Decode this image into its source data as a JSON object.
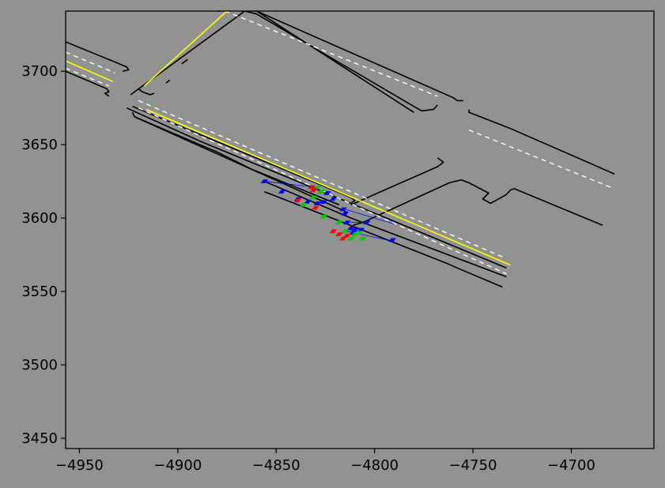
{
  "chart_data": {
    "type": "scatter",
    "title": "",
    "xlabel": "",
    "ylabel": "",
    "xlim": [
      -4957,
      -4658
    ],
    "ylim": [
      3443,
      3741
    ],
    "xticks": [
      -4950,
      -4900,
      -4850,
      -4800,
      -4750,
      -4700
    ],
    "xtick_labels": [
      "−4950",
      "−4900",
      "−4850",
      "−4800",
      "−4750",
      "−4700"
    ],
    "yticks": [
      3450,
      3500,
      3550,
      3600,
      3650,
      3700
    ],
    "ytick_labels": [
      "3450",
      "3500",
      "3550",
      "3600",
      "3650",
      "3700"
    ],
    "grid": false,
    "colors": {
      "background": "#919390",
      "road_edge": "#000000",
      "lane_divider": "#ffffff",
      "center_line": "#ffff00",
      "agent_a": "#0000ff",
      "agent_b": "#00cc00",
      "agent_c": "#ff0000"
    },
    "road_edges": [
      [
        [
          -4957,
          3720
        ],
        [
          -4926,
          3703
        ],
        [
          -4925,
          3701
        ],
        [
          -4928,
          3700
        ]
      ],
      [
        [
          -4957,
          3700
        ],
        [
          -4936,
          3688
        ],
        [
          -4935,
          3686
        ],
        [
          -4937,
          3685
        ],
        [
          -4935,
          3683
        ]
      ],
      [
        [
          -4923,
          3672
        ],
        [
          -4922,
          3669
        ],
        [
          -4880,
          3645
        ],
        [
          -4862,
          3633
        ],
        [
          -4818,
          3609
        ]
      ],
      [
        [
          -4812,
          3609
        ],
        [
          -4768,
          3635
        ],
        [
          -4765,
          3638
        ],
        [
          -4768,
          3641
        ]
      ],
      [
        [
          -4814,
          3604
        ],
        [
          -4922,
          3669
        ]
      ],
      [
        [
          -4923,
          3676
        ],
        [
          -4812,
          3614
        ],
        [
          -4810,
          3612
        ],
        [
          -4812,
          3610
        ]
      ],
      [
        [
          -4924,
          3684
        ],
        [
          -4868,
          3739
        ],
        [
          -4866,
          3741
        ],
        [
          -4860,
          3739
        ],
        [
          -4780,
          3676
        ],
        [
          -4776,
          3673
        ],
        [
          -4770,
          3674
        ],
        [
          -4768,
          3677
        ]
      ],
      [
        [
          -4878,
          3741
        ],
        [
          -4880,
          3741
        ]
      ],
      [
        [
          -4811,
          3595
        ],
        [
          -4806,
          3597
        ],
        [
          -4762,
          3624
        ],
        [
          -4756,
          3626
        ],
        [
          -4752,
          3624
        ],
        [
          -4742,
          3617
        ],
        [
          -4745,
          3613
        ],
        [
          -4741,
          3610
        ],
        [
          -4733,
          3616
        ],
        [
          -4731,
          3619
        ],
        [
          -4729,
          3620
        ],
        [
          -4684,
          3595
        ]
      ],
      [
        [
          -4868,
          3741
        ],
        [
          -4860,
          3741
        ]
      ],
      [
        [
          -4860,
          3741
        ],
        [
          -4760,
          3682
        ],
        [
          -4758,
          3680
        ],
        [
          -4755,
          3680
        ]
      ],
      [
        [
          -4752,
          3674
        ],
        [
          -4752,
          3672
        ],
        [
          -4731,
          3661
        ],
        [
          -4678,
          3630
        ]
      ],
      [
        [
          -4912,
          3685
        ],
        [
          -4914,
          3684
        ],
        [
          -4918,
          3686
        ],
        [
          -4920,
          3688
        ]
      ],
      [
        [
          -4904,
          3694
        ],
        [
          -4906,
          3692
        ]
      ],
      [
        [
          -4898,
          3705
        ],
        [
          -4895,
          3708
        ]
      ],
      [
        [
          -4860,
          3741
        ],
        [
          -4780,
          3672
        ]
      ],
      [
        [
          -4856,
          3625
        ],
        [
          -4812,
          3600
        ],
        [
          -4733,
          3560
        ]
      ],
      [
        [
          -4926,
          3675
        ],
        [
          -4888,
          3652
        ],
        [
          -4850,
          3631
        ],
        [
          -4812,
          3610
        ],
        [
          -4760,
          3581
        ],
        [
          -4733,
          3566
        ]
      ],
      [
        [
          -4856,
          3618
        ],
        [
          -4814,
          3596
        ],
        [
          -4763,
          3569
        ],
        [
          -4758,
          3566
        ],
        [
          -4735,
          3553
        ]
      ]
    ],
    "lane_dividers": [
      [
        [
          -4957,
          3713
        ],
        [
          -4932,
          3699
        ]
      ],
      [
        [
          -4957,
          3702
        ],
        [
          -4935,
          3690
        ]
      ],
      [
        [
          -4920,
          3675
        ],
        [
          -4733,
          3562
        ]
      ],
      [
        [
          -4920,
          3680
        ],
        [
          -4734,
          3573
        ]
      ],
      [
        [
          -4876,
          3741
        ],
        [
          -4768,
          3683
        ]
      ],
      [
        [
          -4752,
          3660
        ],
        [
          -4680,
          3621
        ]
      ]
    ],
    "center_lines": [
      [
        [
          -4957,
          3707
        ],
        [
          -4933,
          3693
        ]
      ],
      [
        [
          -4916,
          3674
        ],
        [
          -4731,
          3568
        ]
      ],
      [
        [
          -4917,
          3690
        ],
        [
          -4875,
          3741
        ]
      ]
    ],
    "series": [
      {
        "color": "agent_a",
        "x": [
          -4856,
          -4847,
          -4839,
          -4834,
          -4829,
          -4826,
          -4824,
          -4821,
          -4816,
          -4815,
          -4814,
          -4812,
          -4811,
          -4810,
          -4807,
          -4804,
          -4791
        ],
        "y": [
          3625,
          3618,
          3613,
          3611,
          3610,
          3611,
          3617,
          3613,
          3606,
          3603,
          3597,
          3593,
          3590,
          3592,
          3592,
          3597,
          3585
        ]
      },
      {
        "color": "agent_b",
        "x": [
          -4831,
          -4827,
          -4829,
          -4836,
          -4826,
          -4818,
          -4815,
          -4812,
          -4810,
          -4808,
          -4806
        ],
        "y": [
          3614,
          3618,
          3621,
          3609,
          3601,
          3597,
          3591,
          3586,
          3589,
          3590,
          3586
        ]
      },
      {
        "color": "agent_c",
        "x": [
          -4832,
          -4831,
          -4839,
          -4830,
          -4821,
          -4818,
          -4816,
          -4814
        ],
        "y": [
          3621,
          3619,
          3612,
          3607,
          3591,
          3589,
          3586,
          3588
        ]
      }
    ],
    "connectors": [
      [
        [
          -4856,
          3625
        ],
        [
          -4830,
          3621
        ]
      ],
      [
        [
          -4815,
          3606
        ],
        [
          -4790,
          3596
        ]
      ],
      [
        [
          -4814,
          3591
        ],
        [
          -4790,
          3584
        ]
      ],
      [
        [
          -4812,
          3597
        ],
        [
          -4804,
          3597
        ]
      ]
    ]
  }
}
